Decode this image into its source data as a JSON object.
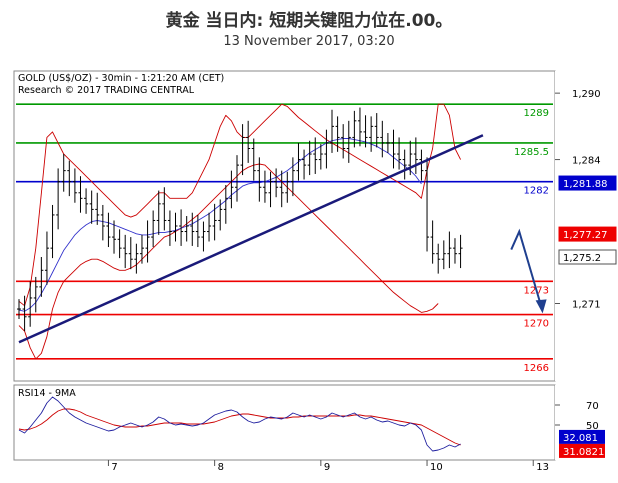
{
  "header": {
    "title": "黄金 当日内: 短期关键阻力位在.00。",
    "subtitle": "13 November 2017, 03:20"
  },
  "colors": {
    "price": "#000000",
    "bollinger": "#cc0000",
    "moving_average": "#3333cc",
    "trendline": "#1a1a7a",
    "resistance": "#009900",
    "pivot": "#0000cc",
    "support": "#ee0000",
    "arrow": "#1f3f8f",
    "rsi": "#1f1f9f",
    "rsi_ma": "#cc0000",
    "badge_blue": "#0000cc",
    "badge_red": "#ee0000",
    "badge_gray": "#505050"
  },
  "chart_data": [
    {
      "type": "line",
      "title": "GOLD (US$/OZ) - 30min - 1:21:20 AM (CET)",
      "subtitle": "Research © 2017 TRADING CENTRAL",
      "x_ticks": [
        "7",
        "8",
        "9",
        "10",
        "13"
      ],
      "y_ticks": [
        1271,
        1284,
        1290
      ],
      "y_tick_labels": [
        "1,271",
        "1,284",
        "1,290"
      ],
      "ylim": [
        1264,
        1292
      ],
      "grid": false,
      "series": [],
      "price": [
        1270.5,
        1269.8,
        1271.5,
        1272.5,
        1274,
        1276,
        1279,
        1282,
        1283,
        1282,
        1281,
        1280.5,
        1280,
        1279.5,
        1279,
        1278,
        1277,
        1276.8,
        1276,
        1275.5,
        1275,
        1275.5,
        1276,
        1277,
        1278.5,
        1280,
        1278.5,
        1277.5,
        1278,
        1277.5,
        1278,
        1277.5,
        1277,
        1277.5,
        1278,
        1278.5,
        1279.5,
        1280.5,
        1281.5,
        1283.5,
        1286,
        1285,
        1283,
        1281.5,
        1281,
        1282,
        1281.5,
        1281,
        1282,
        1283,
        1284,
        1283.5,
        1284.5,
        1284,
        1284.5,
        1285.5,
        1287,
        1286,
        1285,
        1286,
        1287.5,
        1286.5,
        1286,
        1287,
        1286,
        1285.5,
        1285.5,
        1284.5,
        1284,
        1283.5,
        1284.5,
        1284,
        1283,
        1277,
        1275.5,
        1275,
        1275.5,
        1276,
        1275.5,
        1276
      ],
      "moving_average": [
        1270.4,
        1270.3,
        1270.6,
        1271.1,
        1271.9,
        1272.8,
        1273.8,
        1274.8,
        1275.8,
        1276.5,
        1277.2,
        1277.7,
        1278.1,
        1278.4,
        1278.5,
        1278.4,
        1278.3,
        1278.1,
        1277.9,
        1277.7,
        1277.5,
        1277.3,
        1277.2,
        1277.2,
        1277.3,
        1277.4,
        1277.4,
        1277.5,
        1277.6,
        1277.8,
        1278.0,
        1278.2,
        1278.5,
        1278.8,
        1279.1,
        1279.5,
        1279.9,
        1280.3,
        1280.8,
        1281.2,
        1281.6,
        1281.8,
        1281.9,
        1281.9,
        1282.0,
        1282.2,
        1282.4,
        1282.7,
        1283.0,
        1283.4,
        1283.8,
        1284.2,
        1284.6,
        1284.9,
        1285.2,
        1285.5,
        1285.7,
        1285.8,
        1285.9,
        1285.9,
        1285.8,
        1285.7,
        1285.6,
        1285.4,
        1285.2,
        1284.9,
        1284.6,
        1284.2,
        1283.8,
        1283.4,
        1283.0,
        1282.5,
        1281.8
      ],
      "bollinger_upper": [
        1271.2,
        1270.8,
        1272.5,
        1276,
        1281,
        1286,
        1286.5,
        1285.5,
        1284.5,
        1284,
        1283.5,
        1283,
        1282.5,
        1282,
        1281.5,
        1281,
        1280.5,
        1280,
        1279.5,
        1279,
        1278.8,
        1279,
        1279.5,
        1280,
        1280.5,
        1281,
        1281,
        1280.5,
        1280.5,
        1280.5,
        1280.5,
        1281,
        1282,
        1283,
        1284,
        1285.5,
        1287,
        1288,
        1287.5,
        1286.5,
        1286,
        1286,
        1286.5,
        1287,
        1287.5,
        1288,
        1288.5,
        1289,
        1288.8,
        1288.3,
        1287.8,
        1287.4,
        1287,
        1286.6,
        1286.2,
        1285.8,
        1285.5,
        1285.2,
        1284.9,
        1284.6,
        1284.3,
        1284.0,
        1283.7,
        1283.4,
        1283.1,
        1282.8,
        1282.5,
        1282.2,
        1281.9,
        1281.6,
        1281.3,
        1281,
        1280.5,
        1283,
        1285,
        1289,
        1289,
        1288,
        1285,
        1284
      ],
      "bollinger_lower": [
        1269.0,
        1268.5,
        1267.0,
        1266.0,
        1266.5,
        1268,
        1270.5,
        1272,
        1273,
        1273.5,
        1274,
        1274.5,
        1274.8,
        1275,
        1275,
        1274.8,
        1274.5,
        1274.2,
        1274,
        1274,
        1274.2,
        1274.5,
        1275,
        1275.5,
        1276,
        1276.5,
        1277,
        1277.2,
        1277.5,
        1277.8,
        1278.2,
        1278.6,
        1279,
        1279.5,
        1280,
        1280.5,
        1281,
        1281.5,
        1282,
        1282.5,
        1283,
        1283.3,
        1283.5,
        1283.6,
        1283.5,
        1283,
        1282.5,
        1282,
        1281.5,
        1281,
        1280.5,
        1280,
        1279.5,
        1279,
        1278.5,
        1278,
        1277.5,
        1277,
        1276.5,
        1276,
        1275.5,
        1275,
        1274.5,
        1274,
        1273.5,
        1273,
        1272.5,
        1272,
        1271.6,
        1271.2,
        1270.8,
        1270.5,
        1270.2,
        1270.3,
        1270.5,
        1271
      ],
      "levels": [
        {
          "value": 1289,
          "label": "1289",
          "kind": "resistance"
        },
        {
          "value": 1285.5,
          "label": "1285.5",
          "kind": "resistance"
        },
        {
          "value": 1282,
          "label": "1282",
          "kind": "pivot"
        },
        {
          "value": 1273,
          "label": "1273",
          "kind": "support"
        },
        {
          "value": 1270,
          "label": "1270",
          "kind": "support"
        },
        {
          "value": 1266,
          "label": "1266",
          "kind": "support"
        }
      ],
      "trendline": [
        [
          0,
          1267.5
        ],
        [
          83,
          1286.2
        ]
      ],
      "arrow": [
        [
          89.5,
          1277.5
        ],
        [
          93.5,
          1270.2
        ]
      ],
      "price_badges": [
        {
          "value": 1281.88,
          "label": "1,281.88",
          "kind": "blue"
        },
        {
          "value": 1277.27,
          "label": "1,277.27",
          "kind": "red"
        },
        {
          "value": 1275.2,
          "label": "1,275.2",
          "kind": "gray"
        }
      ]
    },
    {
      "type": "line",
      "title": "RSI14 - 9MA",
      "y_ticks": [
        50,
        70
      ],
      "y_tick_labels": [
        "50",
        "70"
      ],
      "ylim": [
        15,
        90
      ],
      "x_ticks": [
        "7",
        "8",
        "9",
        "10",
        "13"
      ],
      "series": [],
      "rsi": [
        45,
        42,
        48,
        55,
        62,
        72,
        78,
        74,
        68,
        62,
        58,
        55,
        52,
        50,
        48,
        46,
        44,
        45,
        48,
        50,
        52,
        50,
        48,
        50,
        53,
        58,
        56,
        52,
        50,
        51,
        50,
        49,
        50,
        52,
        56,
        60,
        62,
        64,
        65,
        63,
        58,
        54,
        52,
        53,
        56,
        58,
        57,
        56,
        58,
        62,
        60,
        58,
        60,
        58,
        56,
        58,
        62,
        60,
        58,
        60,
        62,
        58,
        56,
        58,
        55,
        53,
        54,
        52,
        50,
        49,
        52,
        50,
        45,
        30,
        24,
        25,
        27,
        30,
        28,
        31
      ],
      "rsi_ma": [
        46,
        45,
        46,
        48,
        51,
        55,
        60,
        64,
        66,
        66,
        65,
        63,
        60,
        58,
        56,
        54,
        52,
        50,
        49,
        48,
        48,
        48,
        49,
        49,
        50,
        51,
        52,
        52,
        52,
        52,
        51,
        51,
        51,
        51,
        52,
        53,
        55,
        57,
        59,
        60,
        61,
        61,
        60,
        59,
        58,
        57,
        57,
        57,
        57,
        58,
        58,
        59,
        59,
        59,
        59,
        59,
        59,
        59,
        59,
        59,
        60,
        60,
        59,
        59,
        58,
        57,
        56,
        55,
        54,
        53,
        52,
        51,
        50,
        47,
        44,
        41,
        38,
        35,
        32,
        30
      ],
      "value_badges": [
        {
          "value": 32.081,
          "label": "32.081",
          "kind": "blue"
        },
        {
          "value": 31.0821,
          "label": "31.0821",
          "kind": "red"
        }
      ]
    }
  ]
}
